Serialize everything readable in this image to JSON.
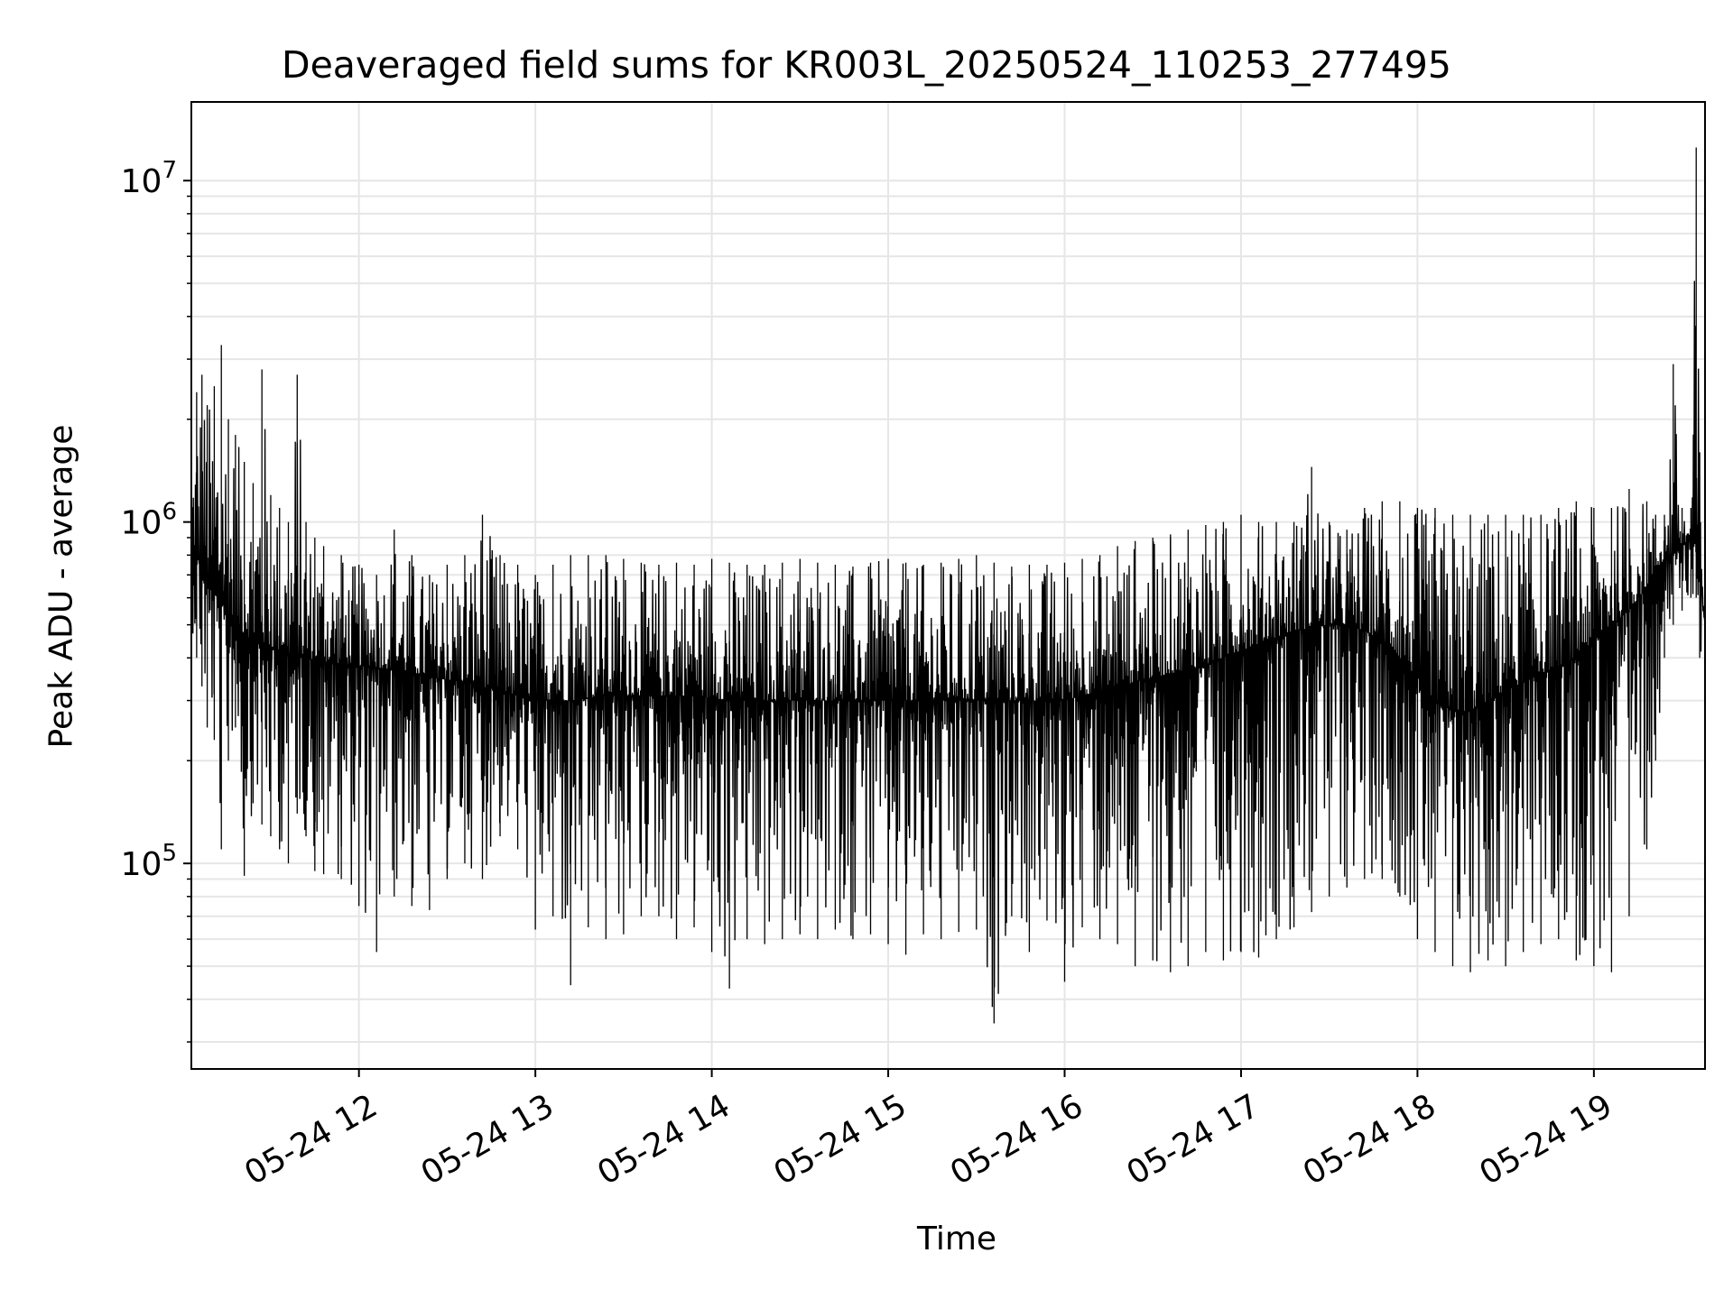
{
  "chart_data": {
    "type": "line",
    "title": "Deaveraged field sums for KR003L_20250524_110253_277495",
    "xlabel": "Time",
    "ylabel": "Peak ADU - average",
    "yscale": "log",
    "ylim": [
      25000,
      17000000
    ],
    "xlim_hours": [
      11.05,
      19.63
    ],
    "x_ticks": [
      {
        "hour": 12,
        "label": "05-24 12"
      },
      {
        "hour": 13,
        "label": "05-24 13"
      },
      {
        "hour": 14,
        "label": "05-24 14"
      },
      {
        "hour": 15,
        "label": "05-24 15"
      },
      {
        "hour": 16,
        "label": "05-24 16"
      },
      {
        "hour": 17,
        "label": "05-24 17"
      },
      {
        "hour": 18,
        "label": "05-24 18"
      },
      {
        "hour": 19,
        "label": "05-24 19"
      }
    ],
    "y_ticks": [
      {
        "value": 100000,
        "base": "10",
        "exp": "5"
      },
      {
        "value": 1000000,
        "base": "10",
        "exp": "6"
      },
      {
        "value": 10000000,
        "base": "10",
        "exp": "7"
      }
    ],
    "grid": true,
    "line_color": "#000000",
    "series": [
      {
        "name": "deaveraged field sums",
        "x_hours": [
          11.05,
          11.08,
          11.11,
          11.14,
          11.18,
          11.22,
          11.26,
          11.3,
          11.35,
          11.4,
          11.45,
          11.5,
          11.55,
          11.6,
          11.65,
          11.7,
          11.75,
          11.8,
          11.9,
          12.0,
          12.1,
          12.2,
          12.3,
          12.4,
          12.5,
          12.6,
          12.7,
          12.8,
          12.9,
          13.0,
          13.1,
          13.2,
          13.3,
          13.4,
          13.5,
          13.6,
          13.7,
          13.8,
          13.9,
          14.0,
          14.1,
          14.2,
          14.3,
          14.4,
          14.5,
          14.6,
          14.7,
          14.8,
          14.9,
          15.0,
          15.1,
          15.2,
          15.3,
          15.4,
          15.5,
          15.6,
          15.7,
          15.8,
          15.9,
          16.0,
          16.1,
          16.2,
          16.3,
          16.4,
          16.5,
          16.6,
          16.7,
          16.8,
          16.9,
          17.0,
          17.1,
          17.2,
          17.3,
          17.4,
          17.5,
          17.6,
          17.7,
          17.8,
          17.9,
          18.0,
          18.1,
          18.2,
          18.3,
          18.4,
          18.5,
          18.6,
          18.7,
          18.8,
          18.9,
          19.0,
          19.1,
          19.2,
          19.3,
          19.35,
          19.4,
          19.45,
          19.5,
          19.55,
          19.58,
          19.6,
          19.63
        ],
        "y_median": [
          900000,
          800000,
          750000,
          700000,
          620000,
          580000,
          540000,
          500000,
          470000,
          450000,
          440000,
          430000,
          420000,
          410000,
          400000,
          400000,
          395000,
          390000,
          385000,
          380000,
          375000,
          370000,
          360000,
          350000,
          345000,
          340000,
          330000,
          320000,
          310000,
          300000,
          300000,
          300000,
          305000,
          310000,
          310000,
          310000,
          310000,
          310000,
          310000,
          305000,
          300000,
          300000,
          300000,
          300000,
          300000,
          300000,
          300000,
          300000,
          300000,
          300000,
          300000,
          300000,
          300000,
          300000,
          300000,
          300000,
          300000,
          300000,
          300000,
          300000,
          310000,
          320000,
          330000,
          340000,
          350000,
          360000,
          370000,
          380000,
          400000,
          420000,
          440000,
          460000,
          480000,
          490000,
          500000,
          500000,
          480000,
          450000,
          400000,
          350000,
          300000,
          280000,
          280000,
          300000,
          320000,
          340000,
          360000,
          380000,
          400000,
          450000,
          500000,
          550000,
          650000,
          720000,
          780000,
          800000,
          850000,
          880000,
          900000,
          700000,
          500000
        ],
        "y_max": [
          1500000,
          2400000,
          2700000,
          2200000,
          2500000,
          3300000,
          2000000,
          1800000,
          1500000,
          1300000,
          2800000,
          1200000,
          1100000,
          1000000,
          2700000,
          1000000,
          900000,
          850000,
          800000,
          750000,
          700000,
          950000,
          800000,
          700000,
          750000,
          800000,
          1050000,
          800000,
          750000,
          700000,
          750000,
          800000,
          800000,
          800000,
          780000,
          760000,
          750000,
          760000,
          750000,
          780000,
          760000,
          750000,
          750000,
          760000,
          780000,
          760000,
          750000,
          740000,
          760000,
          780000,
          760000,
          750000,
          760000,
          780000,
          800000,
          760000,
          740000,
          750000,
          750000,
          760000,
          780000,
          800000,
          850000,
          880000,
          900000,
          920000,
          950000,
          980000,
          1000000,
          1050000,
          1000000,
          1000000,
          1000000,
          1450000,
          1000000,
          950000,
          1100000,
          1150000,
          1150000,
          1100000,
          1100000,
          1050000,
          1050000,
          1050000,
          1050000,
          1050000,
          1050000,
          1100000,
          1150000,
          1100000,
          1100000,
          1250000,
          1150000,
          1050000,
          1050000,
          2900000,
          1100000,
          1100000,
          12500000,
          1600000,
          700000
        ],
        "y_min": [
          500000,
          400000,
          330000,
          250000,
          230000,
          110000,
          200000,
          250000,
          92000,
          150000,
          130000,
          120000,
          110000,
          100000,
          140000,
          120000,
          95000,
          93000,
          90000,
          75000,
          55000,
          80000,
          75000,
          73000,
          90000,
          100000,
          90000,
          120000,
          110000,
          64000,
          70000,
          44000,
          65000,
          60000,
          62000,
          70000,
          70000,
          60000,
          65000,
          55000,
          43000,
          60000,
          58000,
          60000,
          62000,
          60000,
          64000,
          60000,
          62000,
          58000,
          54000,
          62000,
          60000,
          63000,
          64000,
          34000,
          70000,
          55000,
          68000,
          45000,
          65000,
          60000,
          58000,
          50000,
          52000,
          48000,
          50000,
          55000,
          52000,
          55000,
          53000,
          60000,
          65000,
          72000,
          80000,
          85000,
          90000,
          90000,
          80000,
          60000,
          55000,
          50000,
          48000,
          52000,
          50000,
          55000,
          58000,
          60000,
          52000,
          50000,
          48000,
          70000,
          110000,
          200000,
          400000,
          500000,
          550000,
          600000,
          600000,
          400000,
          350000
        ]
      }
    ]
  }
}
